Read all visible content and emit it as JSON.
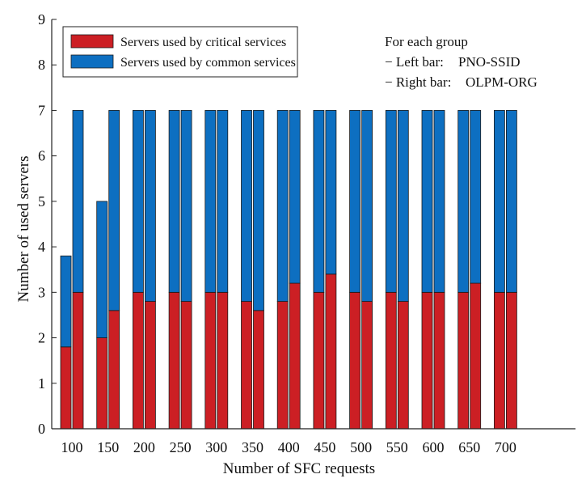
{
  "chart_data": {
    "type": "bar",
    "stacked": true,
    "grouped": true,
    "title": "",
    "xlabel": "Number of SFC requests",
    "ylabel": "Number of used servers",
    "ylim": [
      0,
      9
    ],
    "yticks": [
      "0",
      "1",
      "2",
      "3",
      "4",
      "5",
      "6",
      "7",
      "8",
      "9"
    ],
    "categories": [
      "100",
      "150",
      "200",
      "250",
      "300",
      "350",
      "400",
      "450",
      "500",
      "550",
      "600",
      "650",
      "700"
    ],
    "grid": false,
    "legend": {
      "placement": "top-left",
      "items": [
        {
          "label": "Servers used by critical services",
          "color": "#cc1f24"
        },
        {
          "label": "Servers used by common services",
          "color": "#0d6fc1"
        }
      ]
    },
    "annotation": {
      "title": "For each group",
      "lines": [
        {
          "prefix": "− Left bar:",
          "value": "PNO-SSID"
        },
        {
          "prefix": "− Right bar:",
          "value": "OLPM-ORG"
        }
      ]
    },
    "series": [
      {
        "name": "PNO-SSID",
        "critical": [
          1.8,
          2.0,
          3.0,
          3.0,
          3.0,
          2.8,
          2.8,
          3.0,
          3.0,
          3.0,
          3.0,
          3.0,
          3.0
        ],
        "total": [
          3.8,
          5.0,
          7.0,
          7.0,
          7.0,
          7.0,
          7.0,
          7.0,
          7.0,
          7.0,
          7.0,
          7.0,
          7.0
        ]
      },
      {
        "name": "OLPM-ORG",
        "critical": [
          3.0,
          2.6,
          2.8,
          2.8,
          3.0,
          2.6,
          3.2,
          3.4,
          2.8,
          2.8,
          3.0,
          3.2,
          3.0
        ],
        "total": [
          7.0,
          7.0,
          7.0,
          7.0,
          7.0,
          7.0,
          7.0,
          7.0,
          7.0,
          7.0,
          7.0,
          7.0,
          7.0
        ]
      }
    ],
    "colors": {
      "critical": "#cc1f24",
      "common": "#0d6fc1",
      "edge": "#1a1a1a"
    }
  }
}
